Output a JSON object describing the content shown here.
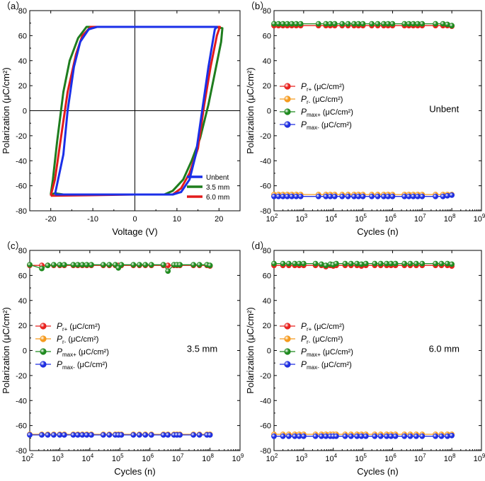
{
  "colors": {
    "pr_plus": "#e8221f",
    "pr_minus": "#f59a1d",
    "pmax_plus": "#1f8a1f",
    "pmax_minus": "#1f2fe0",
    "unbent": "#1a2fe8",
    "mm35": "#1e7d1e",
    "mm60": "#e31b1b"
  },
  "chart_data": [
    {
      "id": "a",
      "panel_label": "（a）",
      "type": "line",
      "title": "",
      "xlabel": "Voltage (V)",
      "ylabel": "Polarization (μC/cm²)",
      "xlim": [
        -25,
        25
      ],
      "ylim": [
        -80,
        80
      ],
      "xticks": [
        "-20",
        "-10",
        "0",
        "10",
        "20"
      ],
      "yticks": [
        "80",
        "60",
        "40",
        "20",
        "0",
        "-20",
        "-40",
        "-60",
        "-80"
      ],
      "legend_position": "bottom-right",
      "series": [
        {
          "name": "Unbent",
          "points": [
            [
              -19,
              -67
            ],
            [
              -17,
              -35
            ],
            [
              -16,
              0
            ],
            [
              -14.5,
              35
            ],
            [
              -13,
              55
            ],
            [
              -11,
              65
            ],
            [
              -9,
              67
            ],
            [
              5,
              67
            ],
            [
              19.5,
              67
            ],
            [
              19,
              65
            ],
            [
              17.5,
              35
            ],
            [
              16,
              0
            ],
            [
              14.5,
              -35
            ],
            [
              13,
              -55
            ],
            [
              11,
              -65
            ],
            [
              9,
              -67
            ],
            [
              0,
              -67
            ],
            [
              -19,
              -67
            ]
          ]
        },
        {
          "name": "3.5 mm",
          "points": [
            [
              -20,
              -67
            ],
            [
              -19.5,
              -55
            ],
            [
              -18.5,
              -25
            ],
            [
              -17,
              15
            ],
            [
              -15.5,
              40
            ],
            [
              -13.5,
              58
            ],
            [
              -11.5,
              67
            ],
            [
              0,
              67
            ],
            [
              19,
              67
            ],
            [
              20.8,
              66
            ],
            [
              20.5,
              55
            ],
            [
              19,
              30
            ],
            [
              17.5,
              5
            ],
            [
              15.5,
              -22
            ],
            [
              13.5,
              -40
            ],
            [
              11.5,
              -55
            ],
            [
              9,
              -64
            ],
            [
              7,
              -67
            ],
            [
              -17,
              -67
            ],
            [
              -19,
              -66
            ],
            [
              -20,
              -67
            ]
          ]
        },
        {
          "name": "6.0 mm",
          "points": [
            [
              -20,
              -68
            ],
            [
              -19,
              -55
            ],
            [
              -17.5,
              -20
            ],
            [
              -16,
              15
            ],
            [
              -14,
              45
            ],
            [
              -12.5,
              60
            ],
            [
              -10.5,
              67
            ],
            [
              0,
              67
            ],
            [
              20.2,
              67
            ],
            [
              19.5,
              60
            ],
            [
              18,
              35
            ],
            [
              16.5,
              5
            ],
            [
              15,
              -30
            ],
            [
              13,
              -50
            ],
            [
              11,
              -62
            ],
            [
              9,
              -67
            ],
            [
              0,
              -67
            ],
            [
              -20,
              -68
            ]
          ]
        }
      ]
    },
    {
      "id": "b",
      "panel_label": "（b）",
      "type": "line",
      "xlabel": "Cycles (n)",
      "ylabel": "Polarization (μC/cm²)",
      "annotation": "Unbent",
      "ylim": [
        -80,
        80
      ],
      "xlog_range": [
        2,
        9
      ],
      "yticks": [
        "80",
        "60",
        "40",
        "20",
        "0",
        "-20",
        "-40",
        "-60",
        "-80"
      ],
      "cycles_log10": [
        2,
        2.15,
        2.3,
        2.45,
        2.6,
        2.75,
        2.9,
        3.5,
        3.75,
        3.9,
        4.05,
        4.3,
        4.5,
        4.7,
        4.85,
        5.0,
        5.3,
        5.5,
        5.7,
        5.85,
        6.0,
        6.4,
        6.55,
        6.7,
        6.85,
        7.0,
        7.45,
        7.7,
        7.85,
        8.0
      ],
      "series": [
        {
          "name": "Pr+",
          "label_main": "P",
          "label_sub": "r+",
          "label_unit": " (μC/cm²)",
          "values": [
            68,
            68,
            68,
            68,
            68,
            68,
            68,
            68,
            68,
            68,
            68,
            68,
            68,
            68,
            68,
            68,
            68,
            68,
            68,
            68,
            68,
            68,
            68,
            68,
            68,
            68,
            68,
            68,
            68,
            67.5
          ]
        },
        {
          "name": "Pr-",
          "label_main": "P",
          "label_sub": "r-",
          "label_unit": " (μC/cm²)",
          "values": [
            -67,
            -67,
            -67,
            -67,
            -67,
            -67,
            -67,
            -67,
            -67,
            -67,
            -67,
            -67,
            -67,
            -67,
            -67,
            -67,
            -67,
            -67,
            -67,
            -67,
            -67,
            -67,
            -67,
            -67,
            -67,
            -67,
            -67,
            -67,
            -67,
            -67
          ]
        },
        {
          "name": "Pmax+",
          "label_main": "P",
          "label_sub": "max+",
          "label_unit": " (μC/cm²)",
          "values": [
            69.5,
            69.5,
            69.5,
            69.5,
            69.5,
            69.5,
            69.5,
            69.5,
            69.5,
            69.5,
            69.5,
            69.5,
            69.5,
            69.5,
            69.5,
            69.5,
            69.5,
            69.5,
            69.5,
            69.5,
            69.5,
            69.5,
            69.5,
            69.5,
            69.5,
            69.5,
            69.5,
            69.5,
            69,
            68
          ]
        },
        {
          "name": "Pmax-",
          "label_main": "P",
          "label_sub": "max-",
          "label_unit": " (μC/cm²)",
          "values": [
            -68.5,
            -68.5,
            -68.5,
            -68.5,
            -68.5,
            -68.5,
            -68.5,
            -68.5,
            -68.5,
            -68.5,
            -68.5,
            -68.5,
            -68.5,
            -68.5,
            -68.5,
            -68.5,
            -68.5,
            -68.5,
            -68.5,
            -68.5,
            -68.5,
            -68.5,
            -68.5,
            -68.5,
            -68.5,
            -68.5,
            -68.5,
            -68.5,
            -68,
            -67.5
          ]
        }
      ]
    },
    {
      "id": "c",
      "panel_label": "（c）",
      "type": "line",
      "xlabel": "Cycles (n)",
      "ylabel": "Polarization (μC/cm²)",
      "annotation": "3.5 mm",
      "ylim": [
        -80,
        80
      ],
      "xlog_range": [
        2,
        9
      ],
      "yticks": [
        "80",
        "60",
        "40",
        "20",
        "0",
        "-20",
        "-40",
        "-60",
        "-80"
      ],
      "cycles_log10": [
        2,
        2.4,
        2.6,
        2.8,
        3.0,
        3.15,
        3.45,
        3.6,
        3.75,
        3.9,
        4.05,
        4.45,
        4.65,
        4.85,
        4.95,
        5.05,
        5.45,
        5.65,
        5.85,
        6.05,
        6.45,
        6.6,
        6.8,
        6.9,
        7.0,
        7.45,
        7.65,
        7.9,
        8.0
      ],
      "series": [
        {
          "name": "Pr+",
          "label_main": "P",
          "label_sub": "r+",
          "label_unit": " (μC/cm²)",
          "values": [
            68,
            68,
            68,
            68,
            68,
            68,
            68,
            68,
            68,
            68,
            68,
            68,
            68,
            68,
            68,
            68,
            68,
            68,
            68,
            68,
            68,
            68,
            68,
            68,
            68,
            68,
            68,
            68,
            67.5
          ]
        },
        {
          "name": "Pr-",
          "label_main": "P",
          "label_sub": "r-",
          "label_unit": " (μC/cm²)",
          "values": [
            -67,
            -67,
            -67,
            -67,
            -67,
            -67,
            -67,
            -67,
            -67,
            -67,
            -67,
            -67,
            -67,
            -67,
            -67,
            -67,
            -67,
            -67,
            -67,
            -67,
            -67,
            -67,
            -67,
            -67,
            -67,
            -67,
            -67,
            -67,
            -67
          ]
        },
        {
          "name": "Pmax+",
          "label_main": "P",
          "label_sub": "max+",
          "label_unit": " (μC/cm²)",
          "values": [
            68.5,
            65.5,
            68,
            68.5,
            68.5,
            68.5,
            68.5,
            68.5,
            68.5,
            68.5,
            68.5,
            68.5,
            68.5,
            68.5,
            66,
            68.5,
            68.5,
            68.5,
            68.5,
            68.5,
            68.5,
            63.5,
            68.5,
            68.5,
            68.5,
            68.5,
            68.5,
            68.5,
            68
          ]
        },
        {
          "name": "Pmax-",
          "label_main": "P",
          "label_sub": "max-",
          "label_unit": " (μC/cm²)",
          "values": [
            -67.5,
            -67.5,
            -67.5,
            -67.5,
            -67.5,
            -67.5,
            -67.5,
            -67.5,
            -67.5,
            -67.5,
            -67.5,
            -67.5,
            -67.5,
            -67.5,
            -67.5,
            -67.5,
            -67.5,
            -67.5,
            -67.5,
            -67.5,
            -67.5,
            -67.5,
            -67.5,
            -67.5,
            -67.5,
            -67.5,
            -67.5,
            -67.5,
            -67.5
          ]
        }
      ]
    },
    {
      "id": "d",
      "panel_label": "（d）",
      "type": "line",
      "xlabel": "Cycles (n)",
      "ylabel": "Polarization (μC/cm²)",
      "annotation": "6.0 mm",
      "ylim": [
        -80,
        80
      ],
      "xlog_range": [
        2,
        9
      ],
      "yticks": [
        "80",
        "60",
        "40",
        "20",
        "0",
        "-20",
        "-40",
        "-60",
        "-80"
      ],
      "cycles_log10": [
        2,
        2.3,
        2.5,
        2.7,
        2.85,
        3.0,
        3.4,
        3.6,
        3.75,
        3.9,
        4.0,
        4.1,
        4.4,
        4.6,
        4.8,
        4.95,
        5.1,
        5.4,
        5.6,
        5.8,
        5.95,
        6.1,
        6.4,
        6.6,
        6.8,
        7.0,
        7.45,
        7.65,
        7.85,
        8.0
      ],
      "series": [
        {
          "name": "Pr+",
          "label_main": "P",
          "label_sub": "r+",
          "label_unit": " (μC/cm²)",
          "values": [
            68,
            68,
            68,
            68,
            68,
            68,
            68,
            68,
            67,
            68,
            67.5,
            68,
            68,
            68,
            68,
            67.5,
            68,
            68,
            68,
            68,
            68,
            68,
            68,
            68,
            68,
            68,
            68,
            68,
            68,
            67.5
          ]
        },
        {
          "name": "Pr-",
          "label_main": "P",
          "label_sub": "r-",
          "label_unit": " (μC/cm²)",
          "values": [
            -67,
            -67,
            -67,
            -67,
            -67,
            -67,
            -67,
            -67,
            -67,
            -67,
            -67,
            -67,
            -67,
            -67,
            -67,
            -67,
            -67,
            -67,
            -67,
            -67,
            -67,
            -67,
            -67,
            -67,
            -67,
            -67,
            -67,
            -67,
            -67,
            -67
          ]
        },
        {
          "name": "Pmax+",
          "label_main": "P",
          "label_sub": "max+",
          "label_unit": " (μC/cm²)",
          "values": [
            69.5,
            69.5,
            69.5,
            69.5,
            69.5,
            69.5,
            69.5,
            69,
            68,
            69,
            68.5,
            69.5,
            69.5,
            69.5,
            69.5,
            69,
            69.5,
            69.5,
            69.5,
            69.5,
            69.5,
            69.5,
            69.5,
            69.5,
            69.5,
            69.5,
            69.5,
            69.5,
            69.5,
            69
          ]
        },
        {
          "name": "Pmax-",
          "label_main": "P",
          "label_sub": "max-",
          "label_unit": " (μC/cm²)",
          "values": [
            -68.5,
            -68.5,
            -68.5,
            -68.5,
            -68.5,
            -68.5,
            -68.5,
            -68.5,
            -68.5,
            -68.5,
            -68.5,
            -68.5,
            -68.5,
            -68.5,
            -68.5,
            -68.5,
            -68.5,
            -68.5,
            -68.5,
            -68.5,
            -68.5,
            -68.5,
            -68.5,
            -68.5,
            -68.5,
            -68.5,
            -68.5,
            -68.5,
            -68.5,
            -68
          ]
        }
      ]
    }
  ]
}
